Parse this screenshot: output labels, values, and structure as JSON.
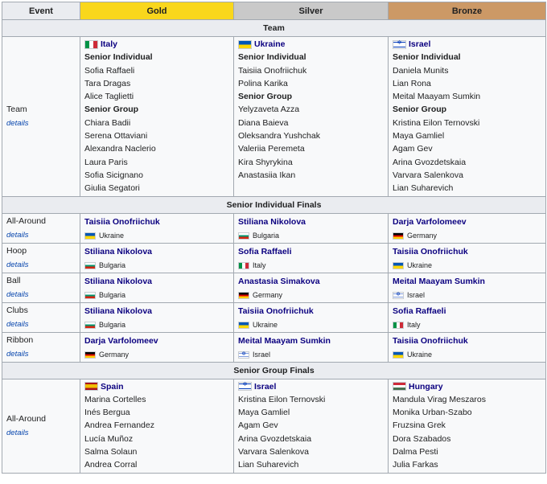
{
  "headers": {
    "event": "Event",
    "gold": "Gold",
    "silver": "Silver",
    "bronze": "Bronze"
  },
  "sections": {
    "team": "Team",
    "individual": "Senior Individual Finals",
    "group": "Senior Group Finals"
  },
  "team": {
    "event": "Team",
    "details": "details",
    "gold": {
      "country": "Italy",
      "flag": "italy",
      "lines": [
        {
          "t": "Senior Individual",
          "b": true
        },
        {
          "t": "Sofia Raffaeli"
        },
        {
          "t": "Tara Dragas"
        },
        {
          "t": "Alice Taglietti"
        },
        {
          "t": "Senior Group",
          "b": true
        },
        {
          "t": "Chiara Badii"
        },
        {
          "t": "Serena Ottaviani"
        },
        {
          "t": "Alexandra Naclerio"
        },
        {
          "t": "Laura Paris"
        },
        {
          "t": "Sofia Sicignano"
        },
        {
          "t": "Giulia Segatori"
        }
      ]
    },
    "silver": {
      "country": "Ukraine",
      "flag": "ukraine",
      "lines": [
        {
          "t": "Senior Individual",
          "b": true
        },
        {
          "t": "Taisiia Onofriichuk"
        },
        {
          "t": "Polina Karika"
        },
        {
          "t": "Senior Group",
          "b": true
        },
        {
          "t": "Yelyzaveta Azza"
        },
        {
          "t": "Diana Baieva"
        },
        {
          "t": "Oleksandra Yushchak"
        },
        {
          "t": "Valeriia Peremeta"
        },
        {
          "t": "Kira Shyrykina"
        },
        {
          "t": "Anastasiia Ikan"
        }
      ]
    },
    "bronze": {
      "country": "Israel",
      "flag": "israel",
      "lines": [
        {
          "t": "Senior Individual",
          "b": true
        },
        {
          "t": "Daniela Munits"
        },
        {
          "t": "Lian Rona"
        },
        {
          "t": "Meital Maayam Sumkin"
        },
        {
          "t": "Senior Group",
          "b": true
        },
        {
          "t": "Kristina Eilon Ternovski"
        },
        {
          "t": "Maya Gamliel"
        },
        {
          "t": "Agam Gev"
        },
        {
          "t": "Arina Gvozdetskaia"
        },
        {
          "t": "Varvara Salenkova"
        },
        {
          "t": "Lian Suharevich"
        }
      ]
    }
  },
  "individual": [
    {
      "event": "All-Around",
      "details": "details",
      "gold": {
        "name": "Taisiia Onofriichuk",
        "country": "Ukraine",
        "flag": "ukraine"
      },
      "silver": {
        "name": "Stiliana Nikolova",
        "country": "Bulgaria",
        "flag": "bulgaria"
      },
      "bronze": {
        "name": "Darja Varfolomeev",
        "country": "Germany",
        "flag": "germany"
      }
    },
    {
      "event": "Hoop",
      "details": "details",
      "gold": {
        "name": "Stiliana Nikolova",
        "country": "Bulgaria",
        "flag": "bulgaria"
      },
      "silver": {
        "name": "Sofia Raffaeli",
        "country": "Italy",
        "flag": "italy"
      },
      "bronze": {
        "name": "Taisiia Onofriichuk",
        "country": "Ukraine",
        "flag": "ukraine"
      }
    },
    {
      "event": "Ball",
      "details": "details",
      "gold": {
        "name": "Stiliana Nikolova",
        "country": "Bulgaria",
        "flag": "bulgaria"
      },
      "silver": {
        "name": "Anastasia Simakova",
        "country": "Germany",
        "flag": "germany"
      },
      "bronze": {
        "name": "Meital Maayam Sumkin",
        "country": "Israel",
        "flag": "israel"
      }
    },
    {
      "event": "Clubs",
      "details": "details",
      "gold": {
        "name": "Stiliana Nikolova",
        "country": "Bulgaria",
        "flag": "bulgaria"
      },
      "silver": {
        "name": "Taisiia Onofriichuk",
        "country": "Ukraine",
        "flag": "ukraine"
      },
      "bronze": {
        "name": "Sofia Raffaeli",
        "country": "Italy",
        "flag": "italy"
      }
    },
    {
      "event": "Ribbon",
      "details": "details",
      "gold": {
        "name": "Darja Varfolomeev",
        "country": "Germany",
        "flag": "germany"
      },
      "silver": {
        "name": "Meital Maayam Sumkin",
        "country": "Israel",
        "flag": "israel"
      },
      "bronze": {
        "name": "Taisiia Onofriichuk",
        "country": "Ukraine",
        "flag": "ukraine"
      }
    }
  ],
  "group": {
    "event": "All-Around",
    "details": "details",
    "gold": {
      "country": "Spain",
      "flag": "spain",
      "lines": [
        {
          "t": "Marina Cortelles"
        },
        {
          "t": "Inés Bergua"
        },
        {
          "t": "Andrea Fernandez"
        },
        {
          "t": "Lucía Muñoz"
        },
        {
          "t": "Salma Solaun"
        },
        {
          "t": "Andrea Corral"
        }
      ]
    },
    "silver": {
      "country": "Israel",
      "flag": "israel",
      "lines": [
        {
          "t": "Kristina Eilon Ternovski"
        },
        {
          "t": "Maya Gamliel"
        },
        {
          "t": "Agam Gev"
        },
        {
          "t": "Arina Gvozdetskaia"
        },
        {
          "t": "Varvara Salenkova"
        },
        {
          "t": "Lian Suharevich"
        }
      ]
    },
    "bronze": {
      "country": "Hungary",
      "flag": "hungary",
      "lines": [
        {
          "t": "Mandula Virag Meszaros"
        },
        {
          "t": "Monika Urban-Szabo"
        },
        {
          "t": "Fruzsina Grek"
        },
        {
          "t": "Dora Szabados"
        },
        {
          "t": "Dalma Pesti"
        },
        {
          "t": "Julia Farkas"
        }
      ]
    }
  }
}
